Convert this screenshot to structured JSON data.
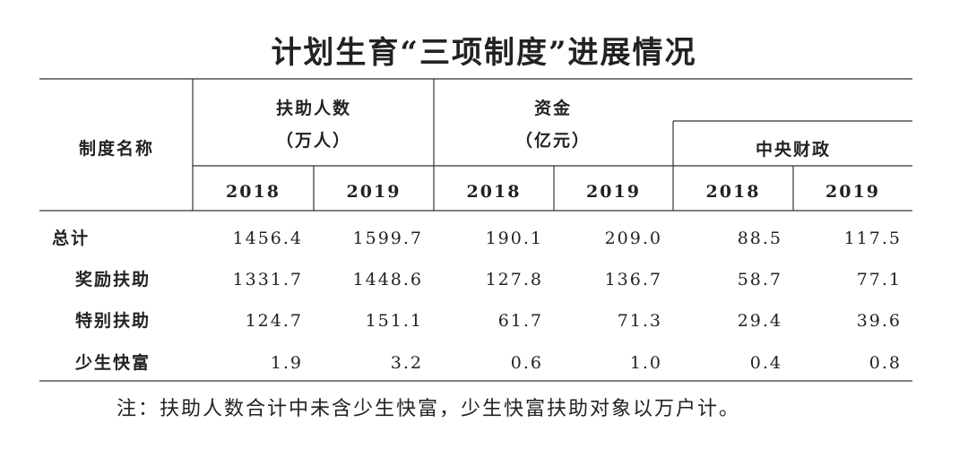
{
  "title": "计划生育“三项制度”进展情况",
  "table": {
    "header": {
      "name": "制度名称",
      "people": {
        "label": "扶助人数",
        "unit": "（万人）"
      },
      "funds": {
        "label": "资金",
        "unit": "（亿元）"
      },
      "central": "中央财政",
      "years": [
        "2018",
        "2019",
        "2018",
        "2019",
        "2018",
        "2019"
      ]
    },
    "rows": [
      [
        "总计",
        "1456.4",
        "1599.7",
        "190.1",
        "209.0",
        "88.5",
        "117.5"
      ],
      [
        "奖励扶助",
        "1331.7",
        "1448.6",
        "127.8",
        "136.7",
        "58.7",
        "77.1"
      ],
      [
        "特别扶助",
        "124.7",
        "151.1",
        "61.7",
        "71.3",
        "29.4",
        "39.6"
      ],
      [
        "少生快富",
        "1.9",
        "3.2",
        "0.6",
        "1.0",
        "0.4",
        "0.8"
      ]
    ]
  },
  "note": "注：扶助人数合计中未含少生快富，少生快富扶助对象以万户计。"
}
